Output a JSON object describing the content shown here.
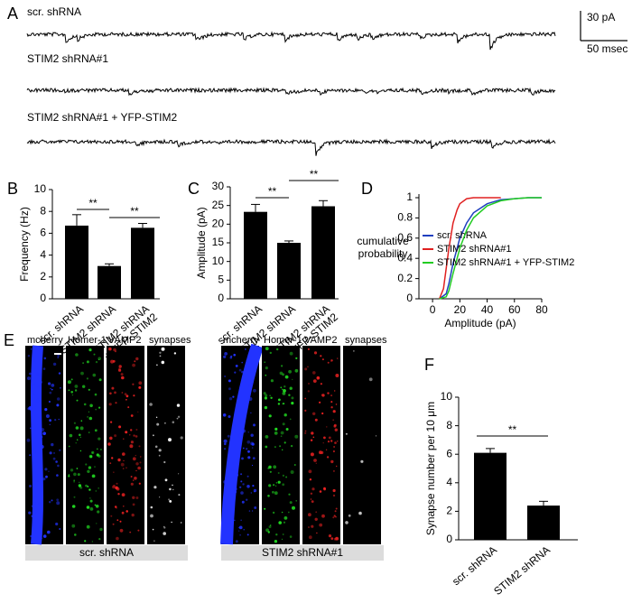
{
  "panel_a": {
    "panel": "A",
    "traces": [
      {
        "label": "scr. shRNA"
      },
      {
        "label": "STIM2 shRNA#1"
      },
      {
        "label": "STIM2 shRNA#1 + YFP-STIM2"
      }
    ],
    "scale_bar": {
      "y_label": "30 pA",
      "x_label": "50 msec"
    }
  },
  "chart_data": [
    {
      "type": "bar",
      "panel": "B",
      "ylabel": "Frequency (Hz)",
      "categories": [
        [
          "scr. shRNA"
        ],
        [
          "STIM2 shRNA"
        ],
        [
          "STIM2 shRNA",
          "+ YFP-STIM2"
        ]
      ],
      "values": [
        6.7,
        3.0,
        6.5
      ],
      "errors": [
        1.0,
        0.2,
        0.4
      ],
      "color": "#000000",
      "ylim": [
        0,
        10
      ],
      "yticks": [
        0,
        2,
        4,
        6,
        8,
        10
      ],
      "annotations": [
        "**",
        "**"
      ]
    },
    {
      "type": "bar",
      "panel": "C",
      "ylabel": "Amplitude (pA)",
      "categories": [
        [
          "scr. shRNA"
        ],
        [
          "STIM2 shRNA"
        ],
        [
          "STIM2 shRNA",
          "+ YFP-STIM2"
        ]
      ],
      "values": [
        23.3,
        15.0,
        24.8
      ],
      "errors": [
        2.0,
        0.5,
        1.5
      ],
      "color": "#000000",
      "ylim": [
        0,
        30
      ],
      "yticks": [
        0,
        5,
        10,
        15,
        20,
        25,
        30
      ],
      "annotations": [
        "**",
        "**"
      ]
    },
    {
      "type": "line",
      "panel": "D",
      "ylabel": [
        "cumulative",
        "probability"
      ],
      "xlabel": "Amplitude (pA)",
      "xlim": [
        -10,
        80
      ],
      "xticks": [
        0,
        20,
        40,
        60,
        80
      ],
      "ylim": [
        0,
        1
      ],
      "yticks": [
        0,
        0.2,
        0.4,
        0.6,
        0.8,
        1
      ],
      "series": [
        {
          "name": "scr. shRNA",
          "color": "#1f3fbf",
          "x": [
            5,
            10,
            12,
            15,
            20,
            25,
            30,
            40,
            50,
            60,
            70,
            80
          ],
          "values": [
            0,
            0.05,
            0.15,
            0.35,
            0.6,
            0.75,
            0.85,
            0.94,
            0.98,
            0.99,
            1,
            1
          ]
        },
        {
          "name": "STIM2 shRNA#1",
          "color": "#e02020",
          "x": [
            5,
            8,
            10,
            12,
            15,
            18,
            20,
            25,
            30,
            40,
            50
          ],
          "values": [
            0,
            0.1,
            0.3,
            0.5,
            0.75,
            0.88,
            0.94,
            0.99,
            1,
            1,
            1
          ]
        },
        {
          "name": "STIM2 shRNA#1 + YFP-STIM2",
          "color": "#22cc22",
          "x": [
            5,
            10,
            12,
            15,
            20,
            25,
            30,
            40,
            50,
            60,
            70,
            80
          ],
          "values": [
            0,
            0.02,
            0.08,
            0.25,
            0.5,
            0.68,
            0.8,
            0.92,
            0.97,
            0.99,
            1,
            1
          ]
        }
      ]
    },
    {
      "type": "bar",
      "panel": "F",
      "ylabel": "Synapse number per 10 μm",
      "categories": [
        [
          "scr. shRNA"
        ],
        [
          "STIM2 shRNA"
        ]
      ],
      "values": [
        6.1,
        2.4
      ],
      "errors": [
        0.3,
        0.3
      ],
      "color": "#000000",
      "ylim": [
        0,
        10
      ],
      "yticks": [
        0,
        2,
        4,
        6,
        8,
        10
      ],
      "annotations": [
        "**"
      ]
    }
  ],
  "panel_e": {
    "panel": "E",
    "groups": [
      {
        "caption": "scr. shRNA",
        "channels": [
          "mcherry",
          "Homer-1",
          "VAMP2",
          "synapses"
        ]
      },
      {
        "caption": "STIM2 shRNA#1",
        "channels": [
          "mcherry",
          "Homer-1",
          "VAMP2",
          "synapses"
        ]
      }
    ]
  }
}
